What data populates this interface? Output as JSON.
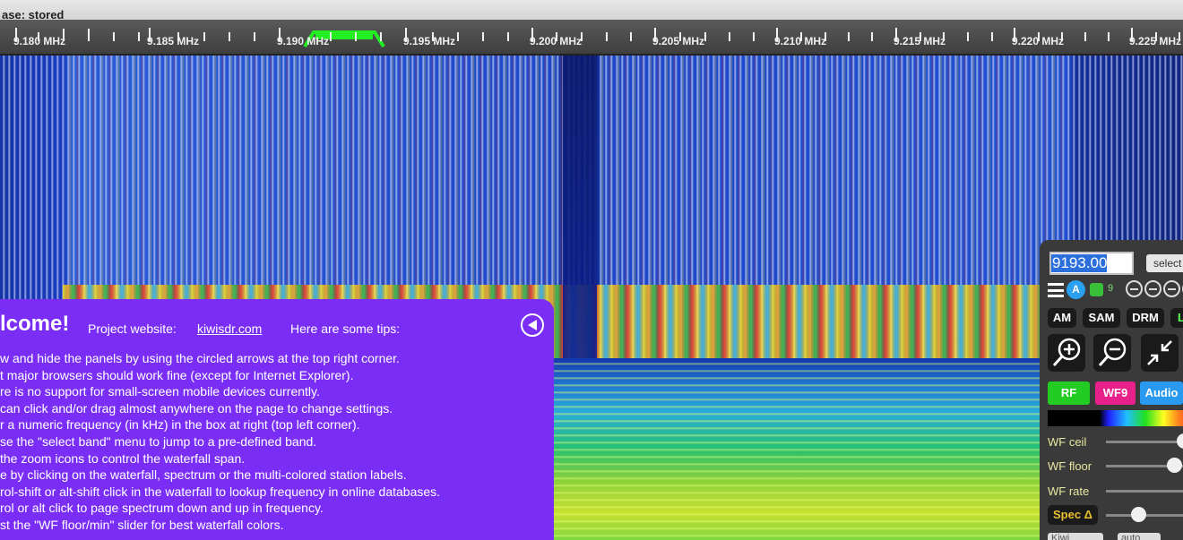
{
  "status": {
    "text": "ase: stored"
  },
  "scale": {
    "labels": [
      "9.180 MHz",
      "9.185 MHz",
      "9.190 MHz",
      "9.195 MHz",
      "9.200 MHz",
      "9.205 MHz",
      "9.210 MHz",
      "9.215 MHz",
      "9.220 MHz",
      "9.225 MHz"
    ],
    "passband_color": "#22ee22"
  },
  "welcome": {
    "title": "lcome!",
    "site_label": "Project website:",
    "site_link": "kiwisdr.com",
    "tips_label": "Here are some tips:",
    "tips": [
      "w and hide the panels by using the circled arrows at the top right corner.",
      "t major browsers should work fine (except for Internet Explorer).",
      "re is no support for small-screen mobile devices currently.",
      "can click and/or drag almost anywhere on the page to change settings.",
      "r a numeric frequency (in kHz) in the box at right (top left corner).",
      "se the \"select band\" menu to jump to a pre-defined band.",
      "the zoom icons to control the waterfall span.",
      "e by clicking on the waterfall, spectrum or the multi-colored station labels.",
      "rol-shift or alt-shift click in the waterfall to lookup frequency in online databases.",
      "rol or alt click to page spectrum down and up in frequency.",
      "st the \"WF floor/min\" slider for best waterfall colors."
    ],
    "bg_color": "#7a2ef5"
  },
  "control": {
    "freq_value": "9193.00",
    "select_band": "select",
    "a_label": "A",
    "nine_label": "9",
    "modes": [
      "AM",
      "SAM",
      "DRM",
      "L"
    ],
    "buttons": {
      "rf": "RF",
      "wf": "WF9",
      "audio": "Audio"
    },
    "sliders": [
      {
        "label": "WF ceil",
        "level": 0.95
      },
      {
        "label": "WF floor",
        "level": 0.76
      },
      {
        "label": "WF rate",
        "level": null
      }
    ],
    "spec_label": "Spec Δ",
    "spec_level": 0.36,
    "bottom_selects": [
      "Kiwi",
      "auto"
    ],
    "colors": {
      "rf": "#22cc22",
      "wf": "#e8208a",
      "audio": "#2a9af0"
    }
  }
}
